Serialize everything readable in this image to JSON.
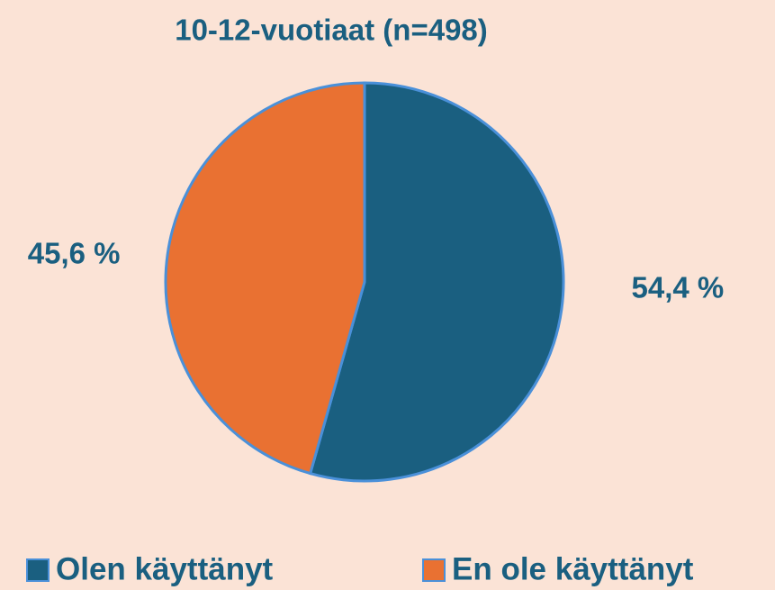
{
  "chart_data": {
    "type": "pie",
    "title": "10-12-vuotiaat (n=498)",
    "categories": [
      "Olen käyttänyt",
      "En ole käyttänyt"
    ],
    "values": [
      54.4,
      45.6
    ],
    "value_labels": [
      "54,4 %",
      "45,6 %"
    ],
    "colors": [
      "#1a5f80",
      "#e97132"
    ],
    "legend": "bottom"
  }
}
